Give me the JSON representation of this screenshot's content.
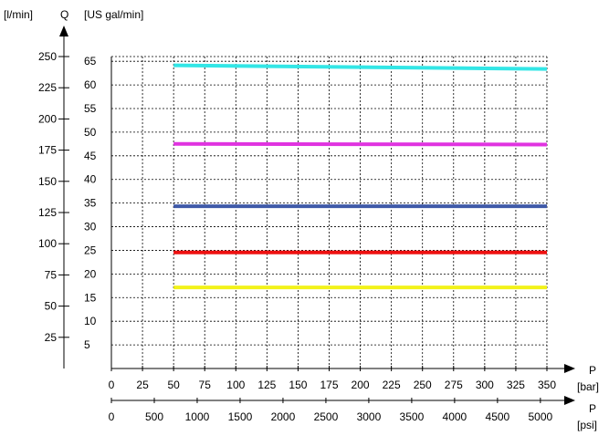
{
  "chart_data": {
    "type": "line",
    "title": "",
    "y_left": {
      "unit_label": "[l/min]",
      "quantity_label": "Q",
      "ticks": [
        25,
        50,
        75,
        100,
        125,
        150,
        175,
        200,
        225,
        250
      ],
      "ylim": [
        0,
        250
      ]
    },
    "y_right": {
      "unit_label": "[US gal/min]",
      "ticks": [
        5,
        10,
        15,
        20,
        25,
        30,
        35,
        40,
        45,
        50,
        55,
        60,
        65
      ],
      "ylim": [
        0,
        66
      ]
    },
    "x_bar": {
      "quantity_label": "P",
      "unit_label": "[bar]",
      "ticks": [
        0,
        25,
        50,
        75,
        100,
        125,
        150,
        175,
        200,
        225,
        250,
        275,
        300,
        325,
        350
      ],
      "xlim": [
        0,
        350
      ]
    },
    "x_psi": {
      "quantity_label": "P",
      "unit_label": "[psi]",
      "ticks": [
        0,
        500,
        1000,
        1500,
        2000,
        2500,
        3000,
        3500,
        4000,
        4500,
        5000
      ],
      "xlim": [
        0,
        5076
      ]
    },
    "grid": true,
    "x": [
      50,
      350
    ],
    "series": [
      {
        "color": "#33e6e6",
        "values": [
          243,
          240
        ]
      },
      {
        "color": "#e033e0",
        "values": [
          180,
          179.5
        ]
      },
      {
        "color": "#3f5aa8",
        "values": [
          130,
          130
        ]
      },
      {
        "color": "#ee1111",
        "values": [
          93,
          93
        ]
      },
      {
        "color": "#f2f21a",
        "values": [
          65,
          65
        ]
      }
    ]
  }
}
